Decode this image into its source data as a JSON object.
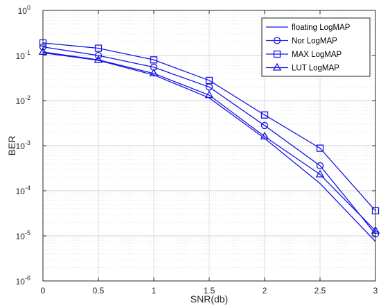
{
  "chart_data": {
    "type": "line",
    "title": "",
    "xlabel": "SNR(db)",
    "ylabel": "BER",
    "xlim": [
      0,
      3
    ],
    "ylim": [
      1e-06,
      1
    ],
    "yscale": "log",
    "grid": true,
    "legend_position": "top-right",
    "line_color": "#1414e6",
    "x": [
      0,
      0.5,
      1,
      1.5,
      2,
      2.5,
      3
    ],
    "x_ticks": [
      "0",
      "0.5",
      "1",
      "1.5",
      "2",
      "2.5",
      "3"
    ],
    "y_ticks": [
      {
        "base": "10",
        "exp": "0"
      },
      {
        "base": "10",
        "exp": "-1"
      },
      {
        "base": "10",
        "exp": "-2"
      },
      {
        "base": "10",
        "exp": "-3"
      },
      {
        "base": "10",
        "exp": "-4"
      },
      {
        "base": "10",
        "exp": "-5"
      },
      {
        "base": "10",
        "exp": "-6"
      }
    ],
    "series": [
      {
        "name": "floating LogMAP",
        "marker": "none",
        "values": [
          0.115,
          0.078,
          0.037,
          0.0115,
          0.00145,
          0.000145,
          7.5e-06
        ]
      },
      {
        "name": "Nor LogMAP",
        "marker": "circle",
        "values": [
          0.155,
          0.1,
          0.055,
          0.02,
          0.0028,
          0.00036,
          1.1e-05
        ]
      },
      {
        "name": "MAX LogMAP",
        "marker": "square",
        "values": [
          0.19,
          0.145,
          0.08,
          0.028,
          0.0048,
          0.00088,
          3.6e-05
        ]
      },
      {
        "name": "LUT LogMAP",
        "marker": "triangle",
        "values": [
          0.12,
          0.08,
          0.04,
          0.0132,
          0.0016,
          0.00023,
          1.3e-05
        ]
      }
    ]
  }
}
